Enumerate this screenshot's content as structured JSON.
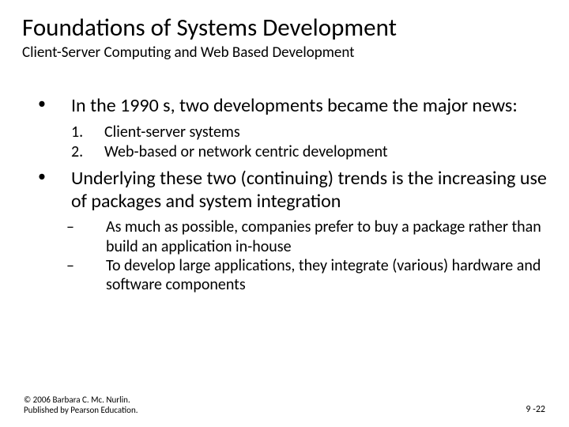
{
  "title": "Foundations of Systems Development",
  "subtitle": "Client-Server Computing and Web Based Development",
  "points": [
    {
      "text": "In the 1990 s, two developments became the major news:",
      "numbered": [
        "Client-server systems",
        "Web-based or network centric development"
      ]
    },
    {
      "text": "Underlying these two (continuing) trends is the increasing use of packages and system integration",
      "dashes": [
        "As much as possible, companies prefer to buy a package rather than build an application in-house",
        "To develop large applications, they integrate (various) hardware and software components"
      ]
    }
  ],
  "footer": {
    "copyright": "© 2006 Barbara C. Mc. Nurlin. Published by Pearson Education.",
    "pagenum": "9 -22"
  }
}
